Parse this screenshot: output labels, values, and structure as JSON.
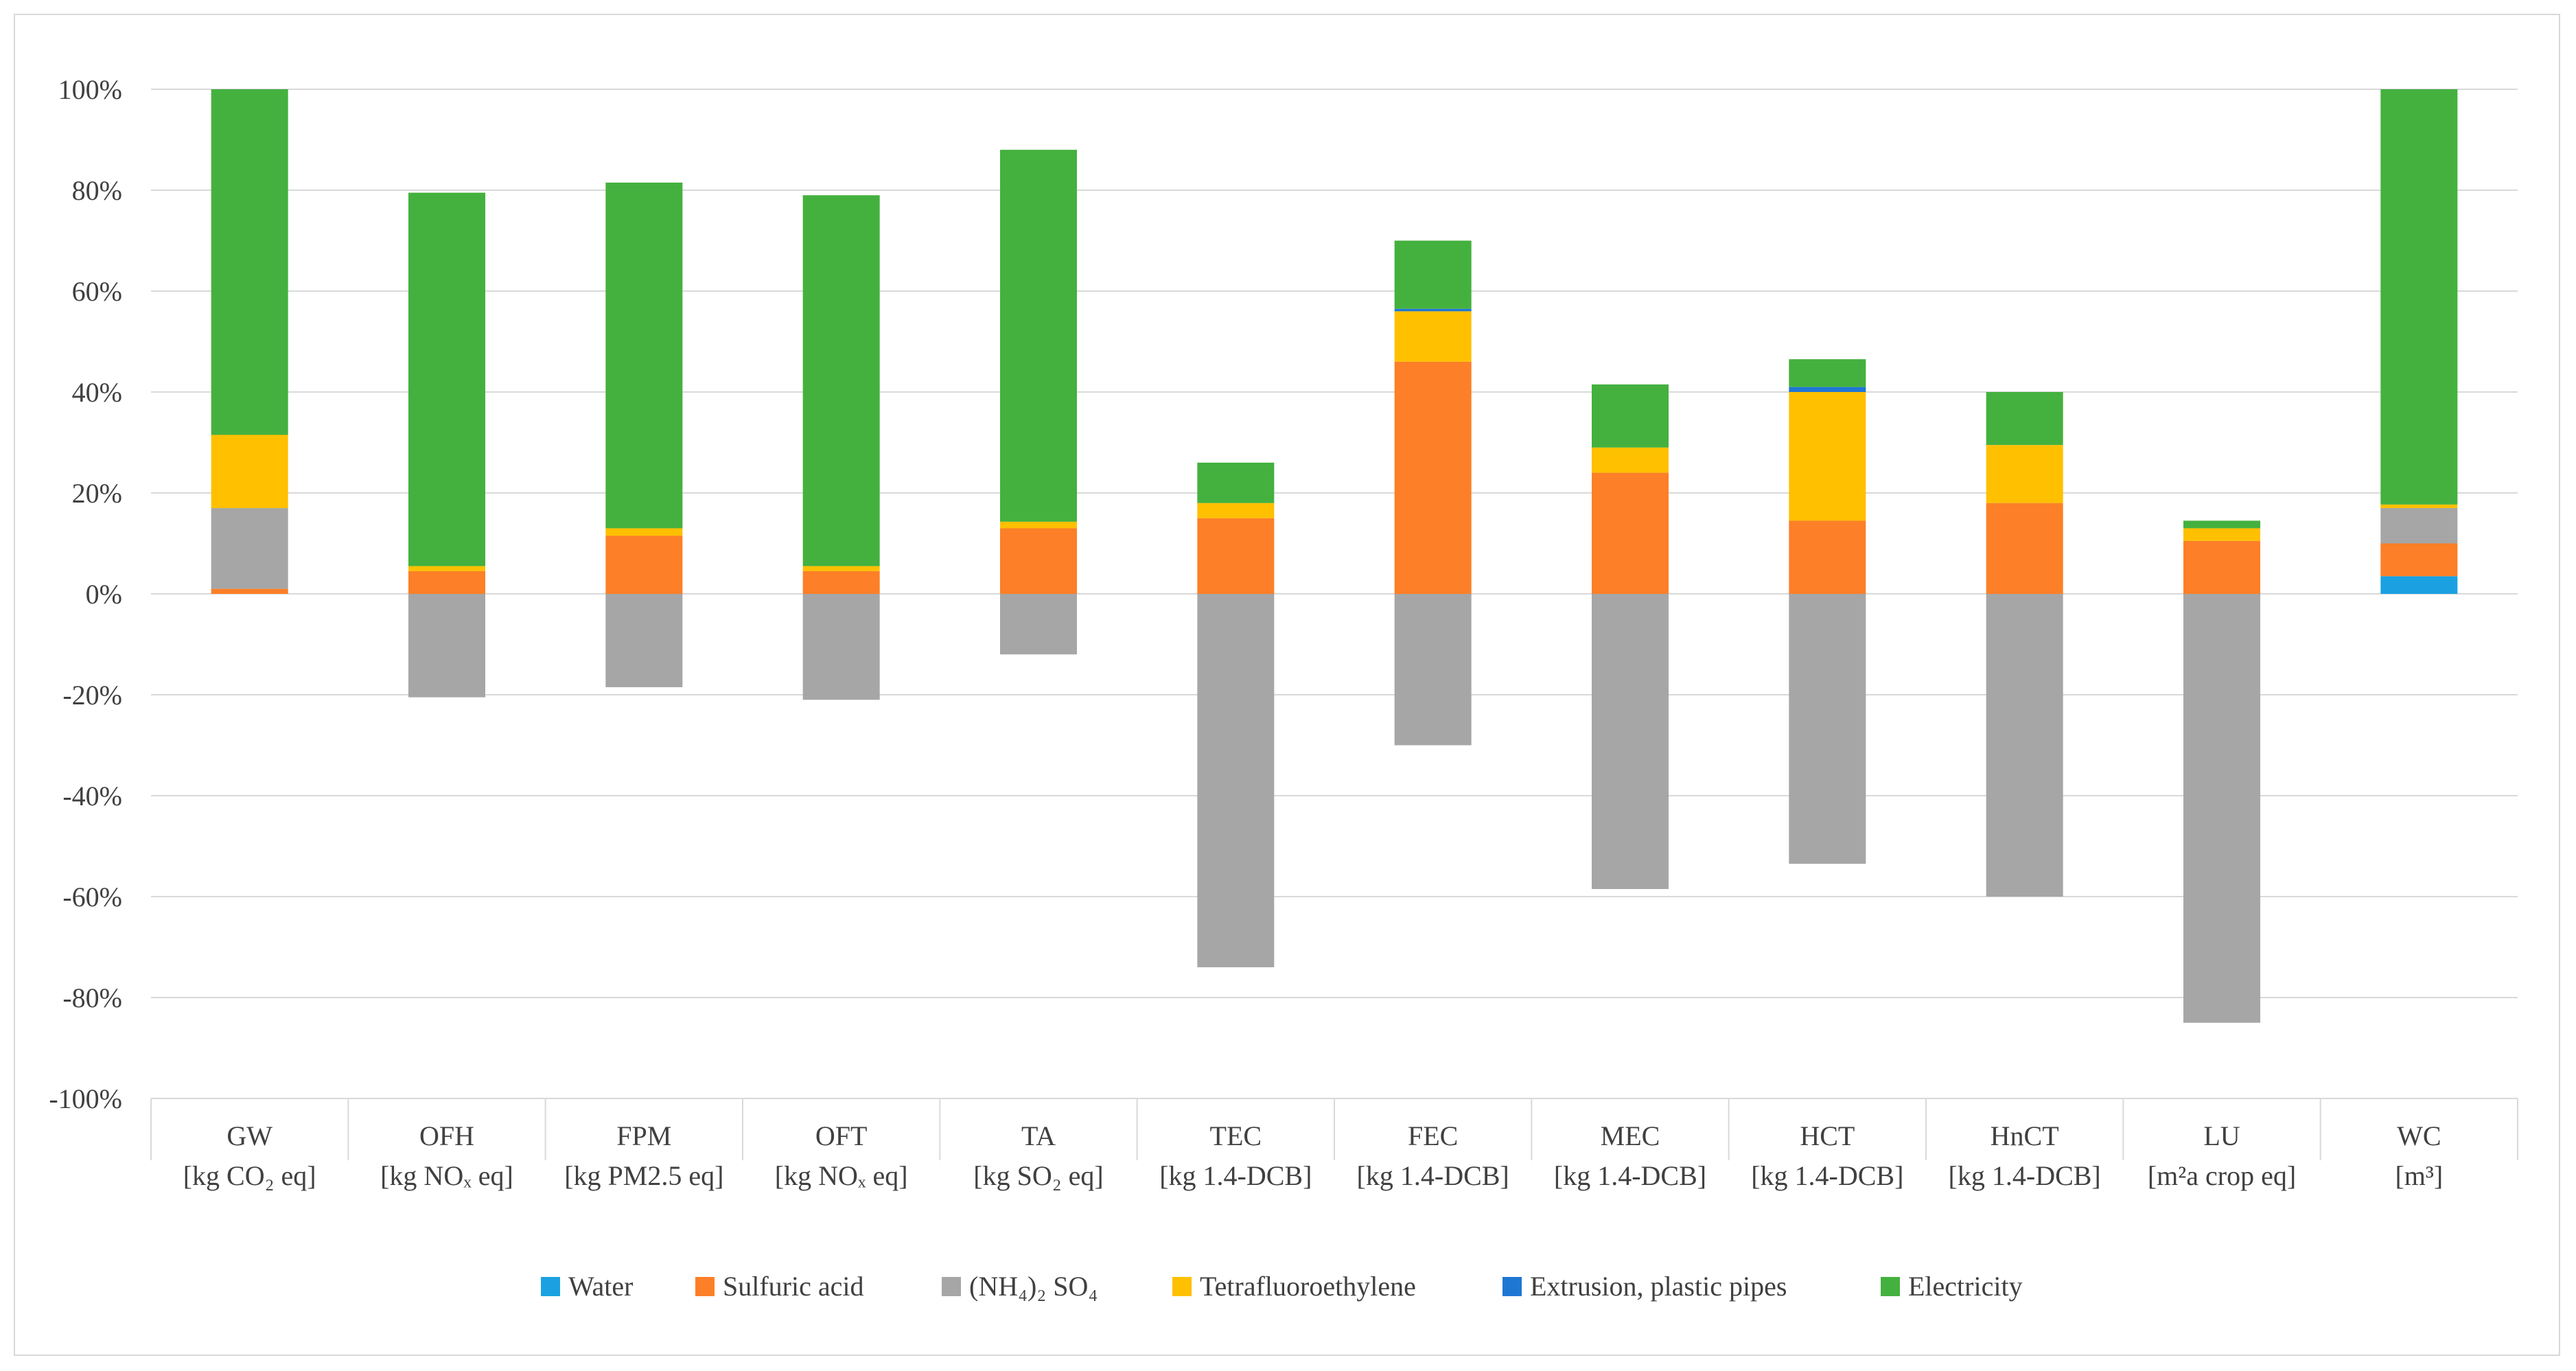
{
  "chart_data": {
    "type": "bar",
    "stacked": true,
    "title": "",
    "xlabel": "",
    "ylabel": "",
    "ylim": [
      -100,
      100
    ],
    "yticks": [
      -100,
      -80,
      -60,
      -40,
      -20,
      0,
      20,
      40,
      60,
      80,
      100
    ],
    "ytick_labels": [
      "-100%",
      "-80%",
      "-60%",
      "-40%",
      "-20%",
      "0%",
      "20%",
      "40%",
      "60%",
      "80%",
      "100%"
    ],
    "grid": true,
    "legend_position": "bottom",
    "categories": [
      "GW",
      "OFH",
      "FPM",
      "OFT",
      "TA",
      "TEC",
      "FEC",
      "MEC",
      "HCT",
      "HnCT",
      "LU",
      "WC"
    ],
    "category_units": [
      "[kg CO₂ eq]",
      "[kg NOₓ eq]",
      "[kg PM2.5 eq]",
      "[kg NOₓ eq]",
      "[kg SO₂ eq]",
      "[kg 1.4-DCB]",
      "[kg 1.4-DCB]",
      "[kg 1.4-DCB]",
      "[kg 1.4-DCB]",
      "[kg 1.4-DCB]",
      "[m²a crop eq]",
      "[m³]"
    ],
    "series": [
      {
        "name": "Water",
        "color": "#1ba1e2",
        "values": [
          0,
          0,
          0,
          0,
          0,
          0,
          0,
          0,
          0,
          0,
          0,
          3.5
        ]
      },
      {
        "name": "Sulfuric acid",
        "color": "#fd7f27",
        "values": [
          1,
          4.5,
          11.5,
          4.5,
          13,
          15,
          46,
          24,
          14.5,
          18,
          10.5,
          6.5
        ]
      },
      {
        "name": "(NH₄)₂ SO₄",
        "color": "#a6a6a6",
        "values": [
          16,
          -20.5,
          -18.5,
          -21,
          -12,
          -74,
          -30,
          -58.5,
          -53.5,
          -60,
          -85,
          7
        ]
      },
      {
        "name": "Tetrafluoroethylene",
        "color": "#ffc000",
        "values": [
          14.5,
          1,
          1.5,
          1,
          1.3,
          3,
          10,
          5,
          25.5,
          11.5,
          2.5,
          0.7
        ]
      },
      {
        "name": "Extrusion, plastic pipes",
        "color": "#1f77d4",
        "values": [
          0,
          0,
          0,
          0,
          0,
          0,
          0.5,
          0,
          1,
          0,
          0,
          0
        ]
      },
      {
        "name": "Electricity",
        "color": "#44b13e",
        "values": [
          68.5,
          74,
          68.5,
          73.5,
          73.7,
          8,
          13.5,
          12.5,
          5.5,
          10.5,
          1.5,
          82.3
        ]
      }
    ]
  }
}
